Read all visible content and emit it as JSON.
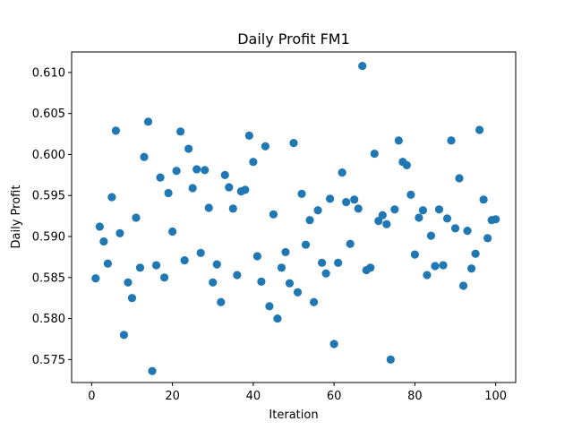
{
  "chart_data": {
    "type": "scatter",
    "title": "Daily Profit FM1",
    "xlabel": "Iteration",
    "ylabel": "Daily Profit",
    "xlim": [
      -4.95,
      104.95
    ],
    "ylim": [
      0.5722,
      0.6125
    ],
    "grid": false,
    "legend": "none",
    "marker_color": "#1f77b4",
    "x_ticks": [
      0,
      20,
      40,
      60,
      80,
      100
    ],
    "x_tick_labels": [
      "0",
      "20",
      "40",
      "60",
      "80",
      "100"
    ],
    "y_ticks": [
      0.575,
      0.58,
      0.585,
      0.59,
      0.595,
      0.6,
      0.605,
      0.61
    ],
    "y_tick_labels": [
      "0.575",
      "0.580",
      "0.585",
      "0.590",
      "0.595",
      "0.600",
      "0.605",
      "0.610"
    ],
    "series": [
      {
        "x": [
          1,
          2,
          3,
          4,
          5,
          6,
          7,
          8,
          9,
          10,
          11,
          12,
          13,
          14,
          15,
          16,
          17,
          18,
          19,
          20,
          21,
          22,
          23,
          24,
          25,
          26,
          27,
          28,
          29,
          30,
          31,
          32,
          33,
          34,
          35,
          36,
          37,
          38,
          39,
          40,
          41,
          42,
          43,
          44,
          45,
          46,
          47,
          48,
          49,
          50,
          51,
          52,
          53,
          54,
          55,
          56,
          57,
          58,
          59,
          60,
          61,
          62,
          63,
          64,
          65,
          66,
          67,
          68,
          69,
          70,
          71,
          72,
          73,
          74,
          75,
          76,
          77,
          78,
          79,
          80,
          81,
          82,
          83,
          84,
          85,
          86,
          87,
          88,
          89,
          90,
          91,
          92,
          93,
          94,
          95,
          96,
          97,
          98,
          99,
          100
        ],
        "y": [
          0.5849,
          0.5912,
          0.5894,
          0.5867,
          0.5948,
          0.6029,
          0.5904,
          0.578,
          0.5844,
          0.5825,
          0.5923,
          0.5862,
          0.5997,
          0.604,
          0.5736,
          0.5865,
          0.5972,
          0.585,
          0.5953,
          0.5906,
          0.598,
          0.6028,
          0.5871,
          0.6007,
          0.5959,
          0.5982,
          0.588,
          0.5981,
          0.5935,
          0.5844,
          0.5866,
          0.582,
          0.5975,
          0.596,
          0.5934,
          0.5853,
          0.5955,
          0.5957,
          0.6023,
          0.5991,
          0.5876,
          0.5845,
          0.601,
          0.5815,
          0.5927,
          0.58,
          0.5862,
          0.5881,
          0.5843,
          0.6014,
          0.5832,
          0.5952,
          0.589,
          0.592,
          0.582,
          0.5932,
          0.5868,
          0.5855,
          0.5946,
          0.5769,
          0.5868,
          0.5978,
          0.5942,
          0.5891,
          0.5945,
          0.5934,
          0.6108,
          0.5859,
          0.5862,
          0.6001,
          0.5919,
          0.5926,
          0.5915,
          0.575,
          0.5933,
          0.6017,
          0.5991,
          0.5987,
          0.5951,
          0.5878,
          0.5923,
          0.5932,
          0.5853,
          0.5901,
          0.5864,
          0.5933,
          0.5865,
          0.5922,
          0.6017,
          0.591,
          0.5971,
          0.584,
          0.5907,
          0.5861,
          0.5879,
          0.603,
          0.5945,
          0.5898,
          0.592,
          0.5921
        ]
      }
    ]
  }
}
